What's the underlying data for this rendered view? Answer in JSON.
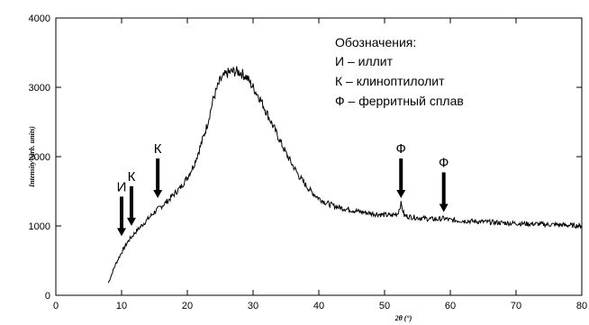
{
  "chart_data": {
    "type": "line",
    "xlabel": "2θ (°)",
    "ylabel": "Intensity (arb. units)",
    "xlim": [
      0,
      80
    ],
    "ylim": [
      0,
      4000
    ],
    "xticks": [
      0,
      10,
      20,
      30,
      40,
      50,
      60,
      70,
      80
    ],
    "yticks": [
      0,
      1000,
      2000,
      3000,
      4000
    ],
    "grid": false,
    "legend": {
      "placement": "top-right",
      "title": "Обозначения:",
      "entries": [
        "И – иллит",
        "К – клиноптилолит",
        "Ф – ферритный сплав"
      ]
    },
    "series": [
      {
        "x": [
          8,
          9,
          10,
          11,
          12,
          13,
          14,
          15,
          16,
          17,
          18,
          19,
          20,
          21,
          22,
          23,
          24,
          25,
          26,
          27,
          28,
          29,
          30,
          31,
          32,
          33,
          34,
          35,
          36,
          37,
          38,
          39,
          40,
          41,
          42,
          43,
          44,
          45,
          46,
          47,
          48,
          49,
          50,
          51,
          52,
          52.5,
          53,
          54,
          55,
          56,
          57,
          58,
          59,
          60,
          61,
          62,
          63,
          64,
          65,
          66,
          67,
          68,
          69,
          70,
          71,
          72,
          73,
          74,
          75,
          76,
          77,
          78,
          79,
          80
        ],
        "y": [
          180,
          430,
          620,
          780,
          900,
          1000,
          1100,
          1200,
          1280,
          1360,
          1460,
          1560,
          1700,
          1880,
          2150,
          2450,
          2850,
          3100,
          3200,
          3230,
          3220,
          3150,
          3000,
          2850,
          2650,
          2450,
          2250,
          2050,
          1880,
          1720,
          1590,
          1480,
          1400,
          1340,
          1300,
          1270,
          1250,
          1230,
          1210,
          1195,
          1180,
          1170,
          1160,
          1150,
          1180,
          1320,
          1150,
          1130,
          1120,
          1110,
          1100,
          1095,
          1110,
          1085,
          1080,
          1075,
          1070,
          1065,
          1060,
          1055,
          1050,
          1045,
          1040,
          1040,
          1035,
          1030,
          1030,
          1025,
          1020,
          1020,
          1015,
          1010,
          1005,
          1000
        ]
      }
    ],
    "annotations": [
      {
        "label": "И",
        "x": 10,
        "y": 800
      },
      {
        "label": "К",
        "x": 11.5,
        "y": 950
      },
      {
        "label": "К",
        "x": 15.5,
        "y": 1350
      },
      {
        "label": "Ф",
        "x": 52.5,
        "y": 1350
      },
      {
        "label": "Ф",
        "x": 59,
        "y": 1150
      }
    ],
    "colors": {
      "line": "#000000",
      "axis": "#000000"
    }
  }
}
